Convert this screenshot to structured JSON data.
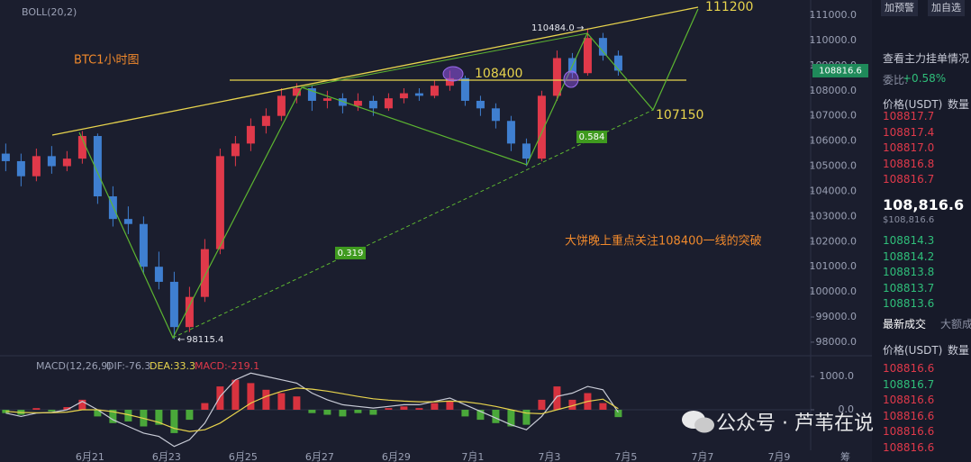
{
  "chart_data": {
    "type": "candlestick",
    "indicator": "BOLL(20,2)",
    "price_tag": "108816.6",
    "up_color": "#e0394a",
    "down_color": "#3f7fd0",
    "x": [
      -2.2,
      -1.8,
      -1.4,
      -1.0,
      -0.6,
      -0.2,
      0.2,
      0.6,
      1.0,
      1.4,
      1.8,
      2.2,
      2.6,
      3.0,
      3.4,
      3.8,
      4.2,
      4.6,
      5.0,
      5.4,
      5.8,
      6.2,
      6.6,
      7.0,
      7.4,
      7.8,
      8.2,
      8.6,
      9.0,
      9.4,
      9.8,
      10.2,
      10.6,
      11.0,
      11.4,
      11.8,
      12.2,
      12.6,
      13.0,
      13.4,
      13.8
    ],
    "candles": [
      [
        105500,
        105900,
        104800,
        105200
      ],
      [
        105200,
        105500,
        104200,
        104600
      ],
      [
        104600,
        105700,
        104400,
        105400
      ],
      [
        105400,
        105800,
        104700,
        105000
      ],
      [
        105000,
        105600,
        104800,
        105300
      ],
      [
        105300,
        106400,
        105100,
        106200
      ],
      [
        106200,
        106300,
        103500,
        103800
      ],
      [
        103800,
        104200,
        102600,
        102900
      ],
      [
        102900,
        103400,
        102300,
        102700
      ],
      [
        102700,
        103000,
        100700,
        101000
      ],
      [
        101000,
        101600,
        100100,
        100400
      ],
      [
        100400,
        100800,
        98115,
        98600
      ],
      [
        98600,
        100200,
        98400,
        99800
      ],
      [
        99800,
        102100,
        99600,
        101700
      ],
      [
        101700,
        105700,
        101500,
        105400
      ],
      [
        105400,
        106200,
        105000,
        105900
      ],
      [
        105900,
        106900,
        105600,
        106600
      ],
      [
        106600,
        107300,
        106300,
        107000
      ],
      [
        107000,
        108100,
        106800,
        107800
      ],
      [
        107800,
        108300,
        107500,
        108100
      ],
      [
        108100,
        108200,
        107200,
        107600
      ],
      [
        107600,
        108000,
        107300,
        107700
      ],
      [
        107700,
        107900,
        107100,
        107400
      ],
      [
        107400,
        107900,
        107200,
        107600
      ],
      [
        107600,
        107800,
        107000,
        107300
      ],
      [
        107300,
        107900,
        107200,
        107700
      ],
      [
        107700,
        108100,
        107500,
        107900
      ],
      [
        107900,
        108100,
        107600,
        107800
      ],
      [
        107800,
        108400,
        107700,
        108200
      ],
      [
        108200,
        108800,
        108000,
        108500
      ],
      [
        108500,
        108600,
        107400,
        107600
      ],
      [
        107600,
        107800,
        107000,
        107300
      ],
      [
        107300,
        107500,
        106500,
        106800
      ],
      [
        106800,
        107000,
        105600,
        105900
      ],
      [
        105900,
        106100,
        105000,
        105300
      ],
      [
        105300,
        108000,
        105200,
        107800
      ],
      [
        107800,
        109600,
        107600,
        109300
      ],
      [
        109300,
        109500,
        108500,
        108700
      ],
      [
        108700,
        110484,
        108600,
        110100
      ],
      [
        110100,
        110300,
        109200,
        109400
      ],
      [
        109400,
        109600,
        108600,
        108800
      ]
    ],
    "xlim": [
      -2.35,
      19.06
    ],
    "xticks": [
      {
        "value": 0,
        "label": "6月21"
      },
      {
        "value": 2,
        "label": "6月23"
      },
      {
        "value": 4,
        "label": "6月25"
      },
      {
        "value": 6,
        "label": "6月27"
      },
      {
        "value": 8,
        "label": "6月29"
      },
      {
        "value": 10,
        "label": "7月1"
      },
      {
        "value": 12,
        "label": "7月3"
      },
      {
        "value": 14,
        "label": "7月5"
      },
      {
        "value": 16,
        "label": "7月7"
      },
      {
        "value": 18,
        "label": "7月9"
      }
    ],
    "ylim": [
      97460,
      111610
    ],
    "yticks": [
      {
        "value": 98000,
        "label": "98000.0"
      },
      {
        "value": 99000,
        "label": "99000.0"
      },
      {
        "value": 100000,
        "label": "100000.0"
      },
      {
        "value": 101000,
        "label": "101000.0"
      },
      {
        "value": 102000,
        "label": "102000.0"
      },
      {
        "value": 103000,
        "label": "103000.0"
      },
      {
        "value": 104000,
        "label": "104000.0"
      },
      {
        "value": 105000,
        "label": "105000.0"
      },
      {
        "value": 106000,
        "label": "106000.0"
      },
      {
        "value": 107000,
        "label": "107000.0"
      },
      {
        "value": 108000,
        "label": "108000.0"
      },
      {
        "value": 109000,
        "label": "109000.0"
      },
      {
        "value": 110000,
        "label": "110000.0"
      },
      {
        "value": 111000,
        "label": "111000.0"
      }
    ],
    "annotations": {
      "title": "BTC1小时图",
      "note": "大饼晚上重点关注108400一线的突破",
      "level_top": 111200,
      "level_mid": 108400,
      "level_target": 107150,
      "fib_a": 0.584,
      "fib_b": 0.319,
      "high": "110484.0",
      "low": "98115.4"
    },
    "macd": {
      "label": "MACD(12,26,9)",
      "dif_label": "DIF:-76.3",
      "dea_label": "DEA:33.3",
      "macd_label": "MACD:-219.1",
      "ylim": [
        -1216,
        1486
      ],
      "yticks": [
        {
          "value": 1000,
          "label": "1000.0"
        },
        {
          "value": 0,
          "label": "0.0"
        }
      ],
      "histogram": [
        -100,
        -150,
        50,
        -50,
        80,
        300,
        -200,
        -400,
        -350,
        -500,
        -450,
        -700,
        -300,
        200,
        700,
        900,
        800,
        600,
        500,
        400,
        -100,
        -150,
        -200,
        -100,
        -150,
        50,
        100,
        50,
        200,
        250,
        -200,
        -300,
        -400,
        -500,
        -450,
        300,
        700,
        300,
        500,
        200,
        -220
      ],
      "dif": [
        -100,
        -200,
        -100,
        -80,
        0,
        250,
        0,
        -300,
        -500,
        -700,
        -800,
        -1100,
        -900,
        -400,
        400,
        900,
        1100,
        1000,
        900,
        800,
        500,
        300,
        150,
        100,
        50,
        100,
        150,
        150,
        250,
        350,
        150,
        -50,
        -250,
        -450,
        -600,
        -200,
        400,
        500,
        700,
        600,
        -76
      ],
      "dea": [
        -50,
        -80,
        -90,
        -90,
        -70,
        0,
        0,
        -60,
        -150,
        -260,
        -380,
        -560,
        -650,
        -600,
        -400,
        -100,
        200,
        400,
        550,
        650,
        620,
        560,
        480,
        400,
        330,
        290,
        260,
        240,
        240,
        260,
        240,
        180,
        100,
        0,
        -100,
        -120,
        0,
        120,
        250,
        320,
        33
      ]
    }
  },
  "panel": {
    "buttons": [
      "加预警",
      "加自选"
    ],
    "depth_title": "查看主力挂单情况",
    "ratio_label": "委比:",
    "ratio": "+0.58%",
    "header": [
      "价格(USDT)",
      "数量"
    ],
    "asks": [
      "108817.7",
      "108817.4",
      "108817.0",
      "108816.8",
      "108816.7"
    ],
    "last": "108,816.6",
    "last_usd": "$108,816.6",
    "bids": [
      "108814.3",
      "108814.2",
      "108813.8",
      "108813.7",
      "108813.6"
    ],
    "tabs": [
      "最新成交",
      "大额成"
    ],
    "trade_header": [
      "价格(USDT)",
      "数量"
    ],
    "trades": [
      "108816.6",
      "108816.7",
      "108816.6",
      "108816.6",
      "108816.6",
      "108816.6"
    ],
    "footer": "筹"
  },
  "watermark": "公众号 · 芦苇在说"
}
